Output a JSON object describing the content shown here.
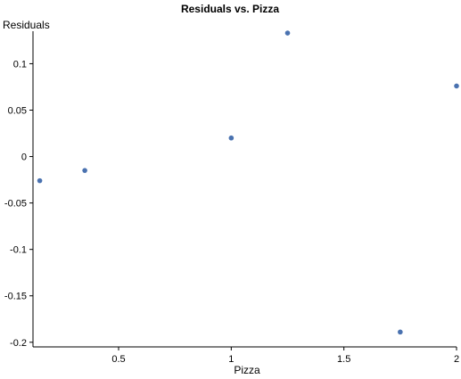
{
  "chart_data": {
    "type": "scatter",
    "title": "Residuals vs. Pizza",
    "xlabel": "Pizza",
    "ylabel": "Residuals",
    "xlim": [
      0.12,
      2.0
    ],
    "ylim": [
      -0.205,
      0.135
    ],
    "xticks": [
      0.5,
      1,
      1.5,
      2
    ],
    "xtick_labels": [
      "0.5",
      "1",
      "1.5",
      "2"
    ],
    "yticks": [
      0.1,
      0.05,
      0,
      -0.05,
      -0.1,
      -0.15,
      -0.2
    ],
    "ytick_labels": [
      "0.1",
      "0.05",
      "0",
      "-0.05",
      "-0.1",
      "-0.15",
      "-0.2"
    ],
    "grid": false,
    "point_color": "#4a72b0",
    "series": [
      {
        "x": [
          0.15,
          0.35,
          1.0,
          1.25,
          1.75,
          2.0
        ],
        "y": [
          -0.026,
          -0.015,
          0.02,
          0.133,
          -0.189,
          0.076
        ]
      }
    ]
  }
}
